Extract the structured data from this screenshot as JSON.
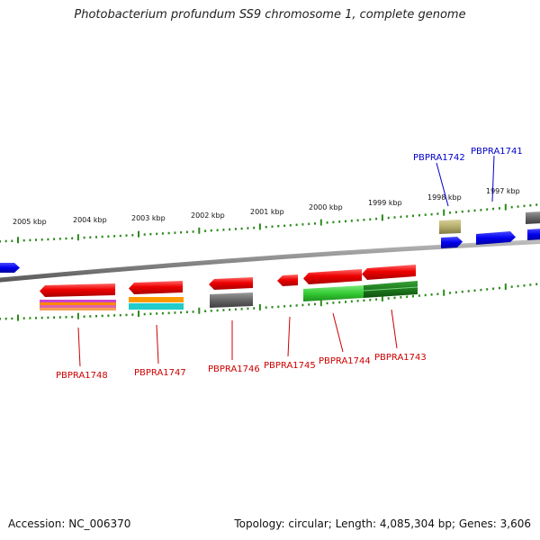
{
  "title": "Photobacterium profundum SS9 chromosome 1, complete genome",
  "footer": {
    "accession": "Accession: NC_006370",
    "summary": "Topology: circular; Length: 4,085,304 bp; Genes: 3,606"
  },
  "ticks": [
    "2005 kbp",
    "2004 kbp",
    "2003 kbp",
    "2002 kbp",
    "2001 kbp",
    "2000 kbp",
    "1999 kbp",
    "1998 kbp",
    "1997 kbp"
  ],
  "genes_top": [
    {
      "label": "PBPRA1742",
      "color": "#0000cc"
    },
    {
      "label": "PBPRA1741",
      "color": "#0000cc"
    }
  ],
  "genes_bottom": [
    {
      "label": "PBPRA1748",
      "color": "#cc0000"
    },
    {
      "label": "PBPRA1747",
      "color": "#cc0000"
    },
    {
      "label": "PBPRA1746",
      "color": "#cc0000"
    },
    {
      "label": "PBPRA1745",
      "color": "#cc0000"
    },
    {
      "label": "PBPRA1744",
      "color": "#cc0000"
    },
    {
      "label": "PBPRA1743",
      "color": "#cc0000"
    }
  ],
  "colors": {
    "backbone": "#8a8a8a",
    "tick_dots": "#2a8a1a",
    "forward_gene": "#0000ee",
    "reverse_gene": "#ee0000",
    "cds_green": "#33cc33",
    "gray_feature": "#666666",
    "khaki_feature": "#b5ad6a"
  }
}
